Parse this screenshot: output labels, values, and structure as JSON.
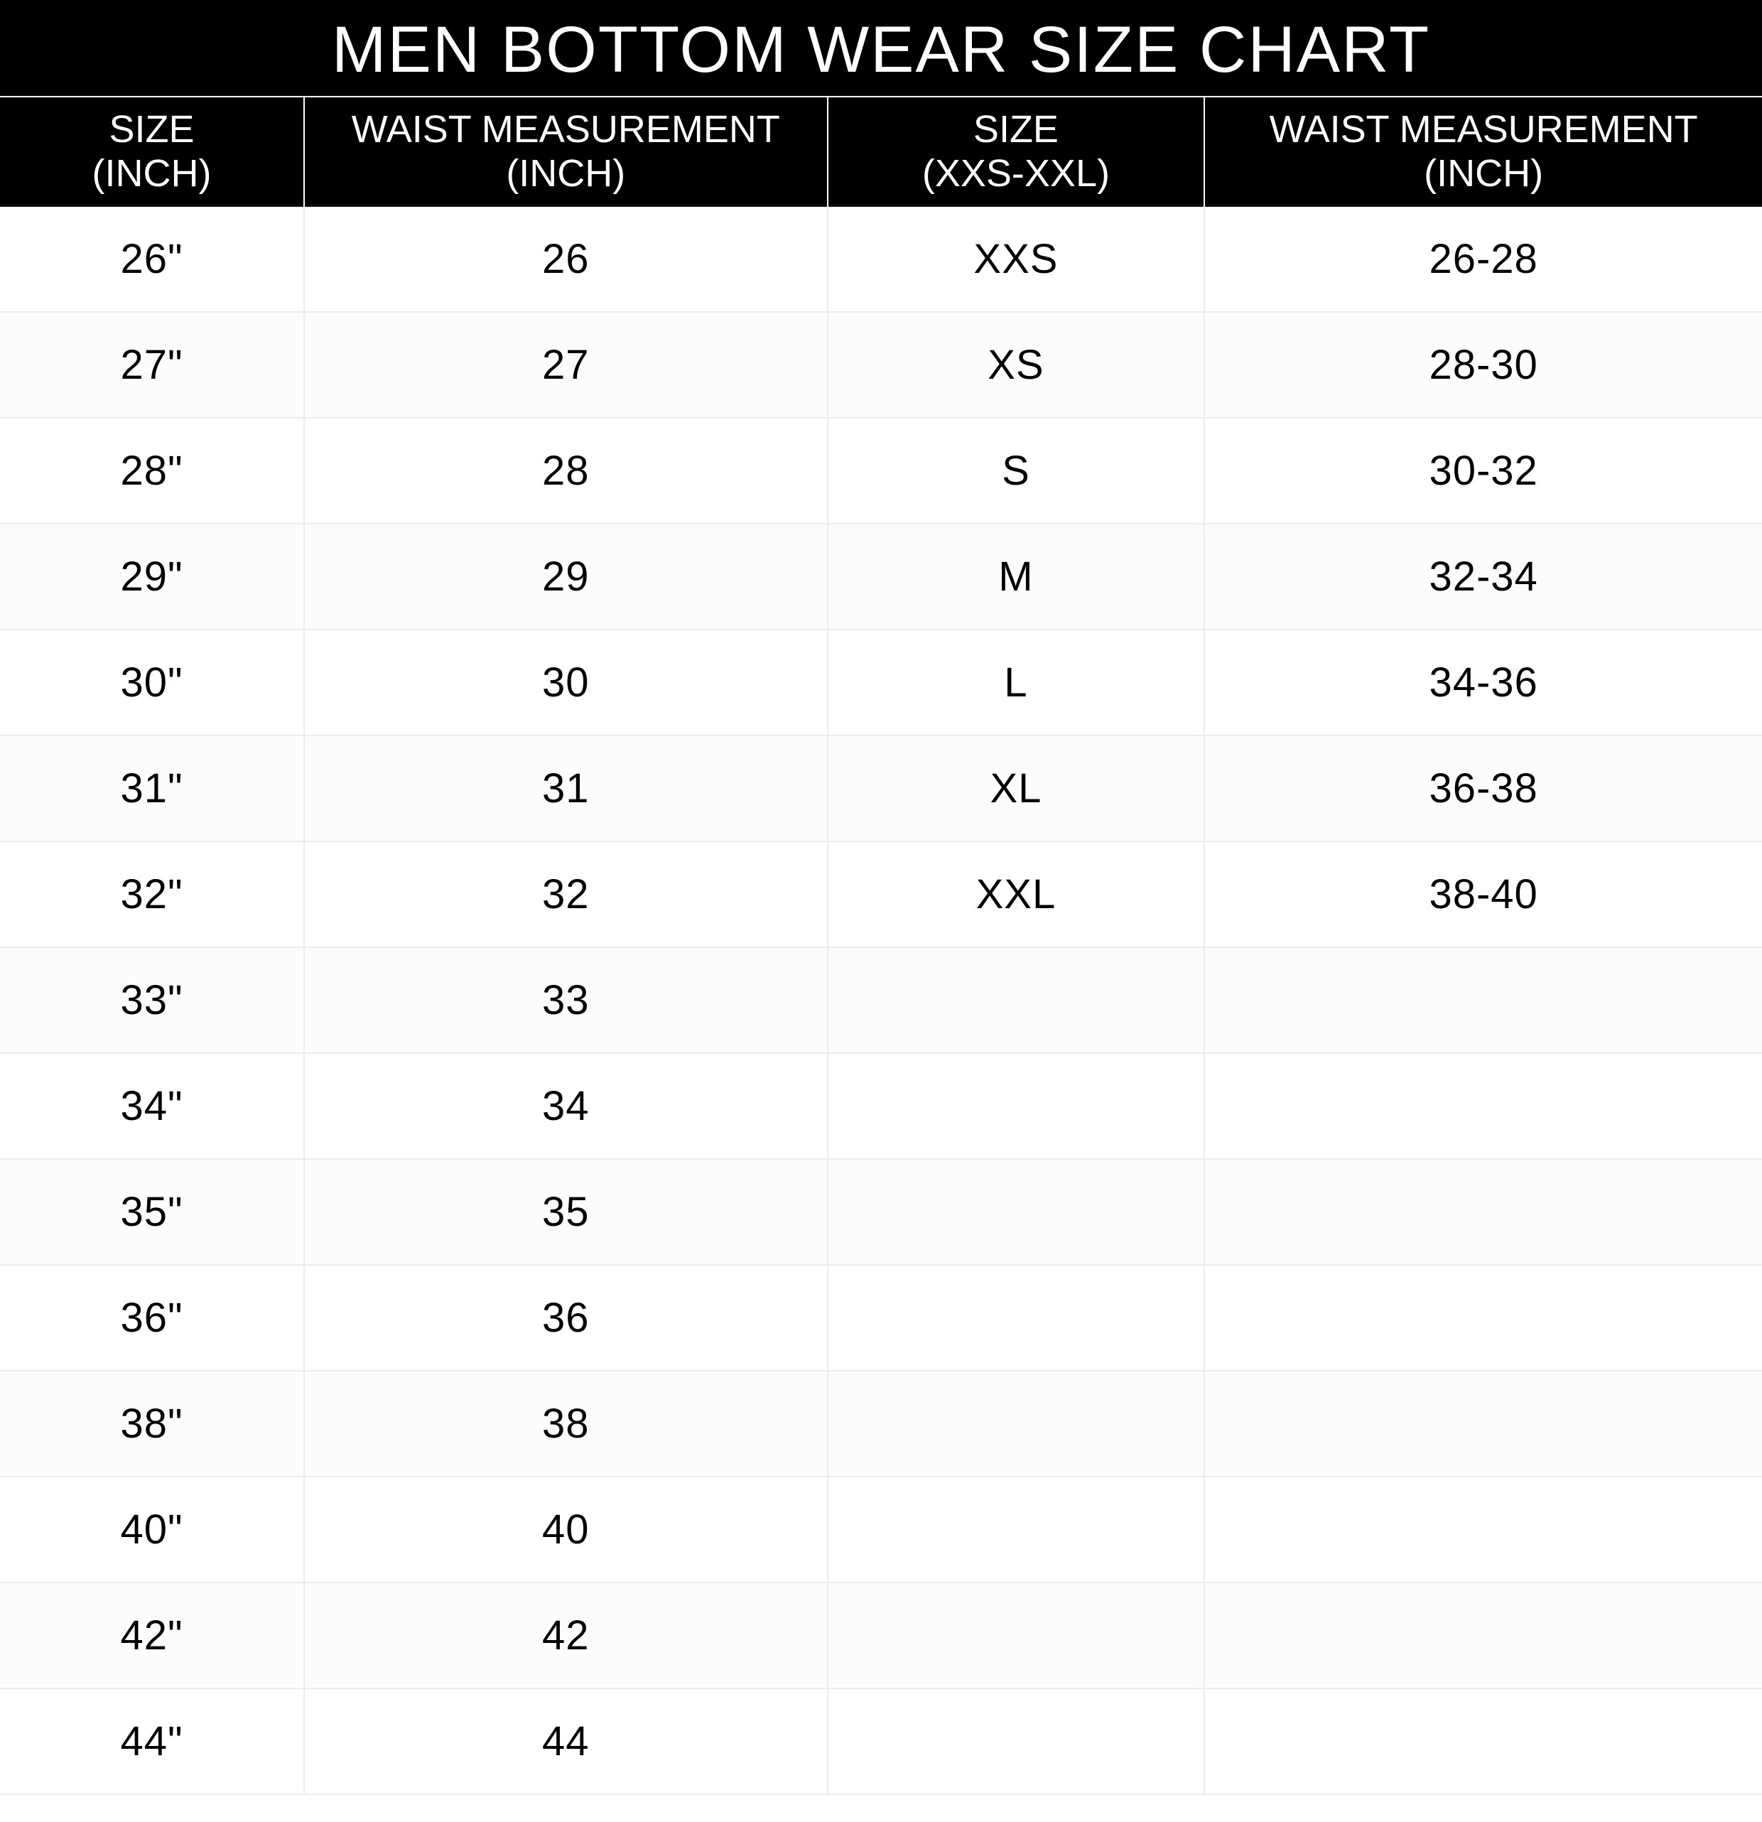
{
  "table": {
    "type": "table",
    "title": "MEN BOTTOM WEAR SIZE CHART",
    "title_fontsize": 92,
    "title_color": "#ffffff",
    "title_bg": "#000000",
    "header_bg": "#000000",
    "header_color": "#ffffff",
    "header_fontsize": 54,
    "body_fontsize": 58,
    "body_color": "#000000",
    "row_border_color": "#ececec",
    "row_alt_bg": "#fcfcfc",
    "background_color": "#ffffff",
    "column_widths_pct": [
      17.3,
      29.7,
      21.4,
      31.6
    ],
    "columns": [
      {
        "line1": "SIZE",
        "line2": "(INCH)"
      },
      {
        "line1": "WAIST MEASUREMENT",
        "line2": "(INCH)"
      },
      {
        "line1": "SIZE",
        "line2": "(XXS-XXL)"
      },
      {
        "line1": "WAIST MEASUREMENT",
        "line2": "(INCH)"
      }
    ],
    "rows": [
      [
        "26\"",
        "26",
        "XXS",
        "26-28"
      ],
      [
        "27\"",
        "27",
        "XS",
        "28-30"
      ],
      [
        "28\"",
        "28",
        "S",
        "30-32"
      ],
      [
        "29\"",
        "29",
        "M",
        "32-34"
      ],
      [
        "30\"",
        "30",
        "L",
        "34-36"
      ],
      [
        "31\"",
        "31",
        "XL",
        "36-38"
      ],
      [
        "32\"",
        "32",
        "XXL",
        "38-40"
      ],
      [
        "33\"",
        "33",
        "",
        ""
      ],
      [
        "34\"",
        "34",
        "",
        ""
      ],
      [
        "35\"",
        "35",
        "",
        ""
      ],
      [
        "36\"",
        "36",
        "",
        ""
      ],
      [
        "38\"",
        "38",
        "",
        ""
      ],
      [
        "40\"",
        "40",
        "",
        ""
      ],
      [
        "42\"",
        "42",
        "",
        ""
      ],
      [
        "44\"",
        "44",
        "",
        ""
      ]
    ]
  }
}
